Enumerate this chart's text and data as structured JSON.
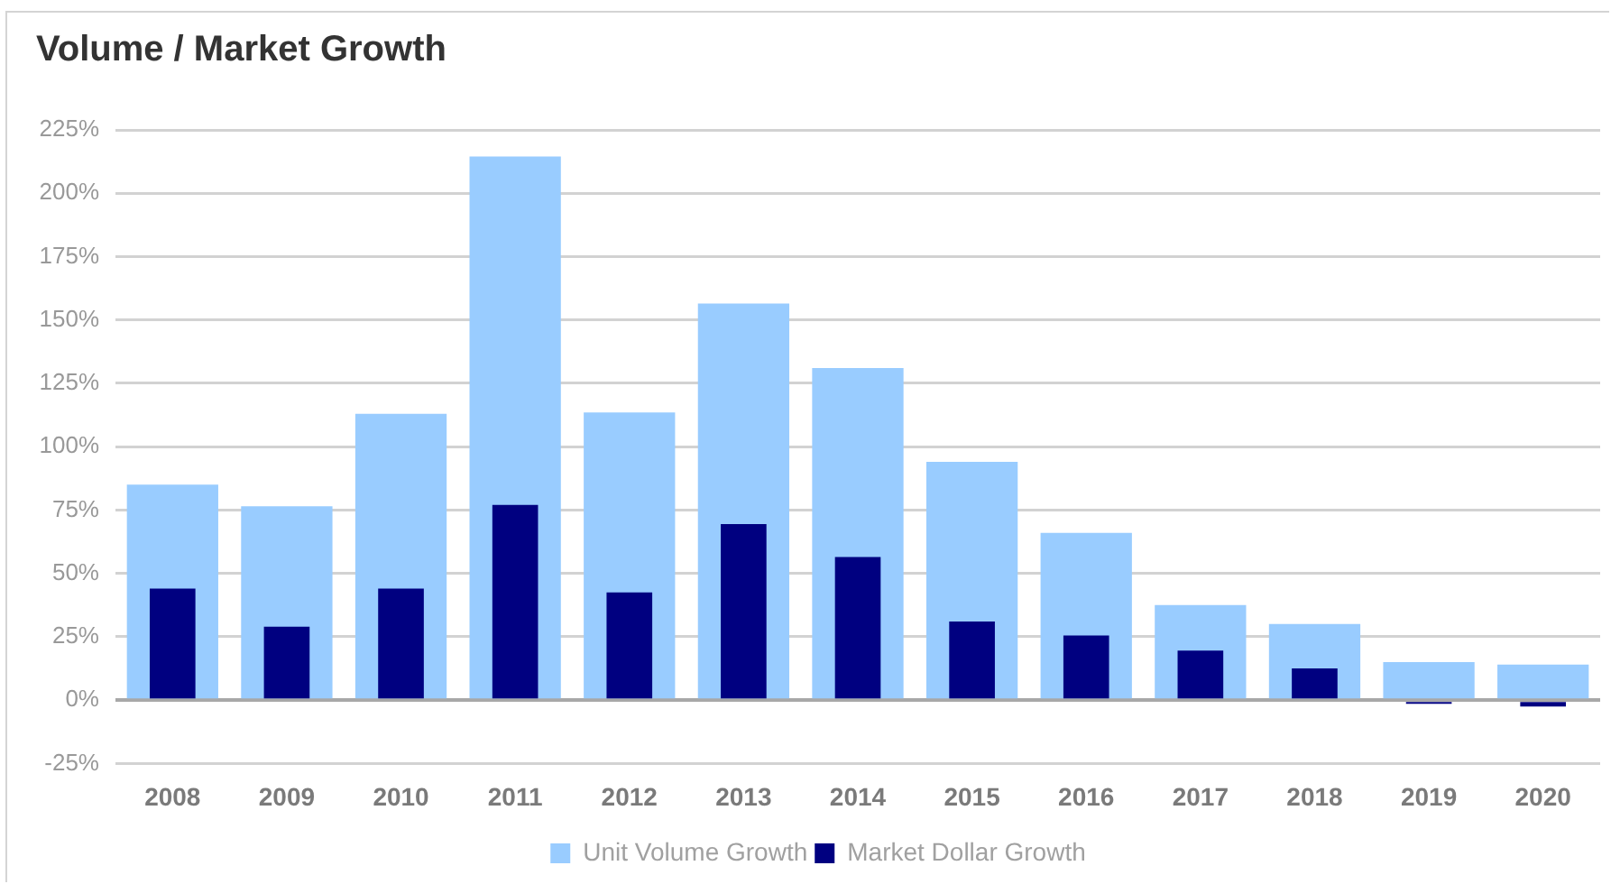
{
  "chart_data": {
    "type": "bar",
    "title": "Volume / Market Growth",
    "categories": [
      "2008",
      "2009",
      "2010",
      "2011",
      "2012",
      "2013",
      "2014",
      "2015",
      "2016",
      "2017",
      "2018",
      "2019",
      "2020"
    ],
    "series": [
      {
        "name": "Unit Volume Growth",
        "color": "#99ccff",
        "values": [
          85,
          76.5,
          113,
          214.5,
          113.5,
          156.5,
          131,
          94,
          66,
          37.5,
          30,
          15,
          14
        ]
      },
      {
        "name": "Market Dollar Growth",
        "color": "#000080",
        "values": [
          44,
          29,
          44,
          77,
          42.5,
          69.5,
          56.5,
          31,
          25.5,
          19.5,
          12.5,
          -1.5,
          -2.5
        ]
      }
    ],
    "ylim": [
      -25,
      225
    ],
    "yticks": [
      {
        "value": -25,
        "label": "-25%"
      },
      {
        "value": 0,
        "label": "0%"
      },
      {
        "value": 25,
        "label": "25%"
      },
      {
        "value": 50,
        "label": "50%"
      },
      {
        "value": 75,
        "label": "75%"
      },
      {
        "value": 100,
        "label": "100%"
      },
      {
        "value": 125,
        "label": "125%"
      },
      {
        "value": 150,
        "label": "150%"
      },
      {
        "value": 175,
        "label": "175%"
      },
      {
        "value": 200,
        "label": "200%"
      },
      {
        "value": 225,
        "label": "225%"
      }
    ],
    "grid": "y",
    "legend": "bottom"
  }
}
